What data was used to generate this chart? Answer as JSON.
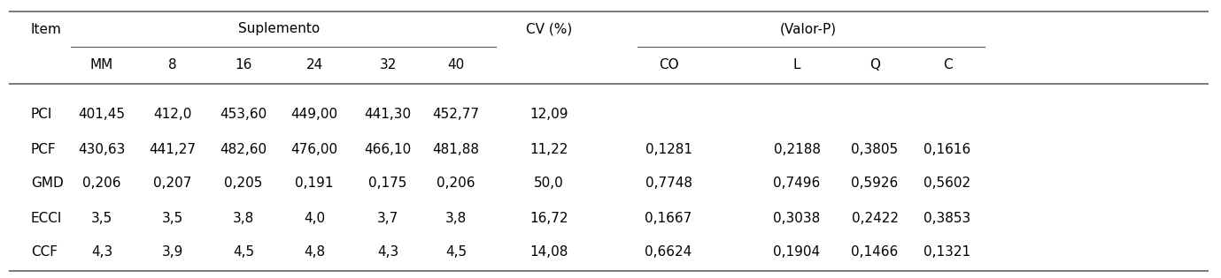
{
  "rows": [
    [
      "PCI",
      "401,45",
      "412,0",
      "453,60",
      "449,00",
      "441,30",
      "452,77",
      "12,09",
      "",
      "",
      "",
      ""
    ],
    [
      "PCF",
      "430,63",
      "441,27",
      "482,60",
      "476,00",
      "466,10",
      "481,88",
      "11,22",
      "0,1281",
      "0,2188",
      "0,3805",
      "0,1616"
    ],
    [
      "GMD",
      "0,206",
      "0,207",
      "0,205",
      "0,191",
      "0,175",
      "0,206",
      "50,0",
      "0,7748",
      "0,7496",
      "0,5926",
      "0,5602"
    ],
    [
      "ECCI",
      "3,5",
      "3,5",
      "3,8",
      "4,0",
      "3,7",
      "3,8",
      "16,72",
      "0,1667",
      "0,3038",
      "0,2422",
      "0,3853"
    ],
    [
      "CCF",
      "4,3",
      "3,9",
      "4,5",
      "4,8",
      "4,3",
      "4,5",
      "14,08",
      "0,6624",
      "0,1904",
      "0,1466",
      "0,1321"
    ]
  ],
  "header2": [
    "MM",
    "8",
    "16",
    "24",
    "32",
    "40",
    "",
    "CO",
    "L",
    "Q",
    "C"
  ],
  "background_color": "#ffffff",
  "text_color": "#000000",
  "line_color": "#555555",
  "font_size": 11.0
}
